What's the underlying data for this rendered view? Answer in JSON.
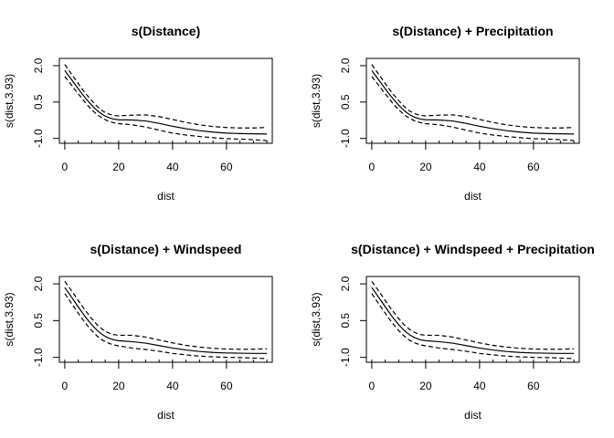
{
  "chart_data": [
    {
      "type": "line",
      "title": "s(Distance)",
      "xlabel": "dist",
      "ylabel": "s(dist,3.93)",
      "xlim": [
        -2,
        77
      ],
      "ylim": [
        -1.2,
        2.3
      ],
      "xticks": [
        0,
        20,
        40,
        60
      ],
      "yticks": [
        -1.0,
        0.5,
        2.0
      ],
      "ytick_labels": [
        "-1.0",
        "0.5",
        "2.0"
      ],
      "grid": false,
      "x": [
        0,
        2,
        4,
        6,
        8,
        10,
        12,
        14,
        16,
        18,
        20,
        25,
        30,
        35,
        40,
        45,
        50,
        55,
        60,
        65,
        70,
        75
      ],
      "series": [
        {
          "role": "fit",
          "style": "solid",
          "values": [
            1.8,
            1.5,
            1.2,
            0.9,
            0.62,
            0.37,
            0.15,
            -0.02,
            -0.13,
            -0.2,
            -0.23,
            -0.24,
            -0.28,
            -0.38,
            -0.5,
            -0.6,
            -0.68,
            -0.74,
            -0.78,
            -0.8,
            -0.81,
            -0.82
          ]
        },
        {
          "role": "upper",
          "style": "dashed",
          "values": [
            2.05,
            1.73,
            1.42,
            1.1,
            0.82,
            0.56,
            0.32,
            0.13,
            0.02,
            -0.05,
            -0.07,
            -0.04,
            -0.03,
            -0.1,
            -0.22,
            -0.34,
            -0.44,
            -0.51,
            -0.55,
            -0.57,
            -0.57,
            -0.55
          ]
        },
        {
          "role": "lower",
          "style": "dashed",
          "values": [
            1.55,
            1.27,
            0.98,
            0.7,
            0.42,
            0.18,
            -0.02,
            -0.17,
            -0.28,
            -0.35,
            -0.39,
            -0.44,
            -0.53,
            -0.66,
            -0.78,
            -0.86,
            -0.92,
            -0.97,
            -1.01,
            -1.03,
            -1.05,
            -1.09
          ]
        }
      ]
    },
    {
      "type": "line",
      "title": "s(Distance) + Precipitation",
      "xlabel": "dist",
      "ylabel": "s(dist,3.93)",
      "xlim": [
        -2,
        77
      ],
      "ylim": [
        -1.2,
        2.3
      ],
      "xticks": [
        0,
        20,
        40,
        60
      ],
      "yticks": [
        -1.0,
        0.5,
        2.0
      ],
      "ytick_labels": [
        "-1.0",
        "0.5",
        "2.0"
      ],
      "grid": false,
      "x": [
        0,
        2,
        4,
        6,
        8,
        10,
        12,
        14,
        16,
        18,
        20,
        25,
        30,
        35,
        40,
        45,
        50,
        55,
        60,
        65,
        70,
        75
      ],
      "series": [
        {
          "role": "fit",
          "style": "solid",
          "values": [
            1.8,
            1.5,
            1.2,
            0.9,
            0.62,
            0.37,
            0.15,
            -0.02,
            -0.13,
            -0.2,
            -0.23,
            -0.24,
            -0.28,
            -0.38,
            -0.5,
            -0.6,
            -0.68,
            -0.74,
            -0.78,
            -0.8,
            -0.81,
            -0.82
          ]
        },
        {
          "role": "upper",
          "style": "dashed",
          "values": [
            2.05,
            1.73,
            1.42,
            1.1,
            0.82,
            0.56,
            0.32,
            0.13,
            0.02,
            -0.05,
            -0.07,
            -0.04,
            -0.03,
            -0.1,
            -0.22,
            -0.34,
            -0.44,
            -0.51,
            -0.55,
            -0.57,
            -0.57,
            -0.55
          ]
        },
        {
          "role": "lower",
          "style": "dashed",
          "values": [
            1.55,
            1.27,
            0.98,
            0.7,
            0.42,
            0.18,
            -0.02,
            -0.17,
            -0.28,
            -0.35,
            -0.39,
            -0.44,
            -0.53,
            -0.66,
            -0.78,
            -0.86,
            -0.92,
            -0.97,
            -1.01,
            -1.03,
            -1.05,
            -1.09
          ]
        }
      ]
    },
    {
      "type": "line",
      "title": "s(Distance) + Windspeed",
      "xlabel": "dist",
      "ylabel": "s(dist,3.93)",
      "xlim": [
        -2,
        77
      ],
      "ylim": [
        -1.2,
        2.3
      ],
      "xticks": [
        0,
        20,
        40,
        60
      ],
      "yticks": [
        -1.0,
        0.5,
        2.0
      ],
      "ytick_labels": [
        "-1.0",
        "0.5",
        "2.0"
      ],
      "grid": false,
      "x": [
        0,
        2,
        4,
        6,
        8,
        10,
        12,
        14,
        16,
        18,
        20,
        25,
        30,
        35,
        40,
        45,
        50,
        55,
        60,
        65,
        70,
        75
      ],
      "series": [
        {
          "role": "fit",
          "style": "solid",
          "values": [
            1.85,
            1.54,
            1.22,
            0.9,
            0.6,
            0.33,
            0.1,
            -0.08,
            -0.2,
            -0.28,
            -0.32,
            -0.36,
            -0.42,
            -0.52,
            -0.62,
            -0.7,
            -0.76,
            -0.8,
            -0.82,
            -0.83,
            -0.84,
            -0.84
          ]
        },
        {
          "role": "upper",
          "style": "dashed",
          "values": [
            2.1,
            1.8,
            1.48,
            1.16,
            0.86,
            0.58,
            0.33,
            0.14,
            0.01,
            -0.07,
            -0.1,
            -0.1,
            -0.17,
            -0.29,
            -0.41,
            -0.51,
            -0.58,
            -0.63,
            -0.66,
            -0.67,
            -0.67,
            -0.65
          ]
        },
        {
          "role": "lower",
          "style": "dashed",
          "values": [
            1.6,
            1.28,
            0.96,
            0.64,
            0.35,
            0.09,
            -0.13,
            -0.3,
            -0.41,
            -0.49,
            -0.53,
            -0.62,
            -0.68,
            -0.75,
            -0.84,
            -0.9,
            -0.95,
            -0.98,
            -1.0,
            -1.01,
            -1.03,
            -1.05
          ]
        }
      ]
    },
    {
      "type": "line",
      "title": "s(Distance) + Windspeed + Precipitation",
      "xlabel": "dist",
      "ylabel": "s(dist,3.93)",
      "xlim": [
        -2,
        77
      ],
      "ylim": [
        -1.2,
        2.3
      ],
      "xticks": [
        0,
        20,
        40,
        60
      ],
      "yticks": [
        -1.0,
        0.5,
        2.0
      ],
      "ytick_labels": [
        "-1.0",
        "0.5",
        "2.0"
      ],
      "grid": false,
      "x": [
        0,
        2,
        4,
        6,
        8,
        10,
        12,
        14,
        16,
        18,
        20,
        25,
        30,
        35,
        40,
        45,
        50,
        55,
        60,
        65,
        70,
        75
      ],
      "series": [
        {
          "role": "fit",
          "style": "solid",
          "values": [
            1.85,
            1.54,
            1.22,
            0.9,
            0.6,
            0.33,
            0.1,
            -0.08,
            -0.2,
            -0.28,
            -0.32,
            -0.36,
            -0.42,
            -0.52,
            -0.62,
            -0.7,
            -0.76,
            -0.8,
            -0.82,
            -0.83,
            -0.84,
            -0.84
          ]
        },
        {
          "role": "upper",
          "style": "dashed",
          "values": [
            2.1,
            1.8,
            1.48,
            1.16,
            0.86,
            0.58,
            0.33,
            0.14,
            0.01,
            -0.07,
            -0.1,
            -0.1,
            -0.17,
            -0.29,
            -0.41,
            -0.51,
            -0.58,
            -0.63,
            -0.66,
            -0.67,
            -0.67,
            -0.65
          ]
        },
        {
          "role": "lower",
          "style": "dashed",
          "values": [
            1.6,
            1.28,
            0.96,
            0.64,
            0.35,
            0.09,
            -0.13,
            -0.3,
            -0.41,
            -0.49,
            -0.53,
            -0.62,
            -0.68,
            -0.75,
            -0.84,
            -0.9,
            -0.95,
            -0.98,
            -1.0,
            -1.01,
            -1.03,
            -1.05
          ]
        }
      ]
    }
  ]
}
